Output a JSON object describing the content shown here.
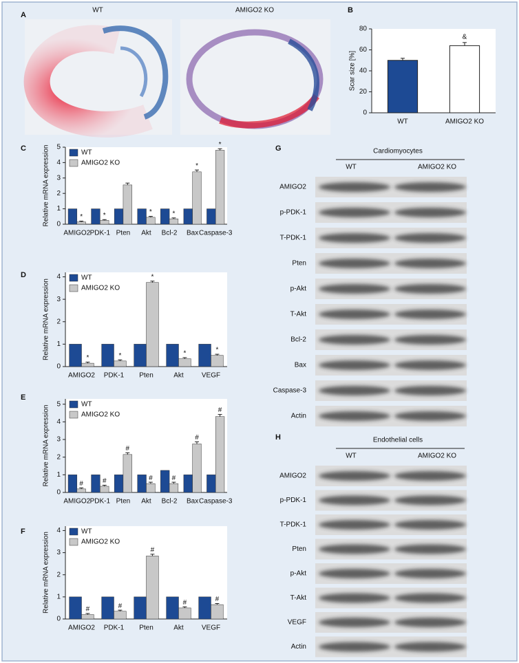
{
  "chart_data": [
    {
      "type": "bar",
      "panel_label": "B",
      "ylabel": "Scar size [%]",
      "categories": [
        "WT",
        "AMIGO2 KO"
      ],
      "values": [
        50,
        64
      ],
      "errors": [
        2,
        3
      ],
      "colors": [
        "#1d4a94",
        "#ffffff"
      ],
      "annotations": [
        null,
        "&"
      ],
      "ylim": [
        0,
        80
      ],
      "yticks": [
        0,
        20,
        40,
        60,
        80
      ]
    },
    {
      "type": "grouped-bar",
      "panel_label": "C",
      "ylabel": "Relative mRNA expression",
      "categories": [
        "AMIGO2",
        "PDK-1",
        "Pten",
        "Akt",
        "Bcl-2",
        "Bax",
        "Caspase-3"
      ],
      "series": [
        {
          "name": "WT",
          "color": "#1d4a94",
          "values": [
            1,
            1,
            1,
            1,
            1,
            1,
            1
          ]
        },
        {
          "name": "AMIGO2 KO",
          "color": "#c8c8c8",
          "values": [
            0.15,
            0.25,
            2.55,
            0.45,
            0.35,
            3.4,
            4.8
          ],
          "errors": [
            0.05,
            0.05,
            0.12,
            0.06,
            0.06,
            0.12,
            0.1
          ],
          "annotations": [
            "*",
            "*",
            null,
            "*",
            "*",
            "*",
            "*"
          ]
        }
      ],
      "ylim": [
        0,
        5
      ],
      "yticks": [
        0,
        1,
        2,
        3,
        4,
        5
      ]
    },
    {
      "type": "grouped-bar",
      "panel_label": "D",
      "ylabel": "Relative mRNA expression",
      "categories": [
        "AMIGO2",
        "PDK-1",
        "Pten",
        "Akt",
        "VEGF"
      ],
      "series": [
        {
          "name": "WT",
          "color": "#1d4a94",
          "values": [
            1,
            1,
            1,
            1,
            1
          ]
        },
        {
          "name": "AMIGO2 KO",
          "color": "#c8c8c8",
          "values": [
            0.15,
            0.25,
            3.75,
            0.35,
            0.5
          ],
          "errors": [
            0.05,
            0.05,
            0.06,
            0.05,
            0.05
          ],
          "annotations": [
            "*",
            "*",
            "*",
            "*",
            "*"
          ]
        }
      ],
      "ylim": [
        0,
        4.2
      ],
      "yticks": [
        0,
        1,
        2,
        3,
        4
      ]
    },
    {
      "type": "grouped-bar",
      "panel_label": "E",
      "ylabel": "Relative mRNA expression",
      "categories": [
        "AMIGO2",
        "PDK-1",
        "Pten",
        "Akt",
        "Bcl-2",
        "Bax",
        "Caspase-3"
      ],
      "series": [
        {
          "name": "WT",
          "color": "#1d4a94",
          "values": [
            1,
            1,
            1,
            1,
            1.25,
            1,
            1
          ]
        },
        {
          "name": "AMIGO2 KO",
          "color": "#c8c8c8",
          "values": [
            0.2,
            0.35,
            2.15,
            0.5,
            0.5,
            2.75,
            4.3
          ],
          "errors": [
            0.06,
            0.06,
            0.1,
            0.08,
            0.08,
            0.12,
            0.12
          ],
          "annotations": [
            "#",
            "#",
            "#",
            "#",
            "#",
            "#",
            "#"
          ]
        }
      ],
      "ylim": [
        0,
        5.3
      ],
      "yticks": [
        0,
        1,
        2,
        3,
        4,
        5
      ]
    },
    {
      "type": "grouped-bar",
      "panel_label": "F",
      "ylabel": "Relative mRNA expression",
      "categories": [
        "AMIGO2",
        "PDK-1",
        "Pten",
        "Akt",
        "VEGF"
      ],
      "series": [
        {
          "name": "WT",
          "color": "#1d4a94",
          "values": [
            1,
            1,
            1,
            1,
            1
          ]
        },
        {
          "name": "AMIGO2 KO",
          "color": "#c8c8c8",
          "values": [
            0.2,
            0.35,
            2.85,
            0.5,
            0.65
          ],
          "errors": [
            0.05,
            0.05,
            0.08,
            0.05,
            0.05
          ],
          "annotations": [
            "#",
            "#",
            "#",
            "#",
            "#"
          ]
        }
      ],
      "ylim": [
        0,
        4.2
      ],
      "yticks": [
        0,
        1,
        2,
        3,
        4
      ]
    }
  ],
  "panel_a": {
    "label": "A",
    "images": [
      {
        "label": "WT"
      },
      {
        "label": "AMIGO2 KO"
      }
    ]
  },
  "blots": [
    {
      "label": "G",
      "title": "Cardiomyocytes",
      "columns": [
        "WT",
        "AMIGO2 KO"
      ],
      "rows": [
        "AMIGO2",
        "p-PDK-1",
        "T-PDK-1",
        "Pten",
        "p-Akt",
        "T-Akt",
        "Bcl-2",
        "Bax",
        "Caspase-3",
        "Actin"
      ]
    },
    {
      "label": "H",
      "title": "Endothelial cells",
      "columns": [
        "WT",
        "AMIGO2 KO"
      ],
      "rows": [
        "AMIGO2",
        "p-PDK-1",
        "T-PDK-1",
        "Pten",
        "p-Akt",
        "T-Akt",
        "VEGF",
        "Actin"
      ]
    }
  ]
}
